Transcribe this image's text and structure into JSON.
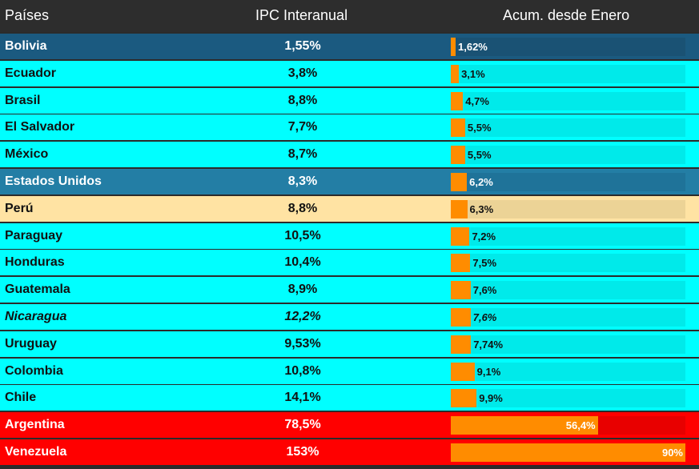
{
  "header": {
    "country": "Países",
    "ipc": "IPC Interanual",
    "acum": "Acum. desde Enero"
  },
  "colors": {
    "header_bg": "#2d2d2d",
    "bar": "#ff8c00",
    "cyan": "#00ffff",
    "blue_dark": "#1b5a80",
    "blue": "#237ea5",
    "cream": "#ffe3a3",
    "red": "#ff0000"
  },
  "chart_data": {
    "type": "table",
    "columns": [
      "Países",
      "IPC Interanual",
      "Acum. desde Enero"
    ],
    "bar_max": 90,
    "rows": [
      {
        "country": "Bolivia",
        "ipc": "1,55%",
        "acum": "1,62%",
        "acum_value": 1.62,
        "style": "blue-dark"
      },
      {
        "country": "Ecuador",
        "ipc": "3,8%",
        "acum": "3,1%",
        "acum_value": 3.1,
        "style": "cyan"
      },
      {
        "country": "Brasil",
        "ipc": "8,8%",
        "acum": "4,7%",
        "acum_value": 4.7,
        "style": "cyan"
      },
      {
        "country": "El Salvador",
        "ipc": "7,7%",
        "acum": "5,5%",
        "acum_value": 5.5,
        "style": "cyan"
      },
      {
        "country": "México",
        "ipc": "8,7%",
        "acum": "5,5%",
        "acum_value": 5.5,
        "style": "cyan"
      },
      {
        "country": "Estados Unidos",
        "ipc": "8,3%",
        "acum": "6,2%",
        "acum_value": 6.2,
        "style": "blue"
      },
      {
        "country": "Perú",
        "ipc": "8,8%",
        "acum": "6,3%",
        "acum_value": 6.3,
        "style": "cream"
      },
      {
        "country": "Paraguay",
        "ipc": "10,5%",
        "acum": "7,2%",
        "acum_value": 7.2,
        "style": "cyan"
      },
      {
        "country": "Honduras",
        "ipc": "10,4%",
        "acum": "7,5%",
        "acum_value": 7.5,
        "style": "cyan"
      },
      {
        "country": "Guatemala",
        "ipc": "8,9%",
        "acum": "7,6%",
        "acum_value": 7.6,
        "style": "cyan"
      },
      {
        "country": "Nicaragua",
        "ipc": "12,2%",
        "acum": "7,6%",
        "acum_value": 7.6,
        "style": "cyan",
        "italic": true
      },
      {
        "country": "Uruguay",
        "ipc": "9,53%",
        "acum": "7,74%",
        "acum_value": 7.74,
        "style": "cyan"
      },
      {
        "country": "Colombia",
        "ipc": "10,8%",
        "acum": "9,1%",
        "acum_value": 9.1,
        "style": "cyan"
      },
      {
        "country": "Chile",
        "ipc": "14,1%",
        "acum": "9,9%",
        "acum_value": 9.9,
        "style": "cyan"
      },
      {
        "country": "Argentina",
        "ipc": "78,5%",
        "acum": "56,4%",
        "acum_value": 56.4,
        "style": "red"
      },
      {
        "country": "Venezuela",
        "ipc": "153%",
        "acum": "90%",
        "acum_value": 90,
        "style": "red"
      }
    ]
  }
}
